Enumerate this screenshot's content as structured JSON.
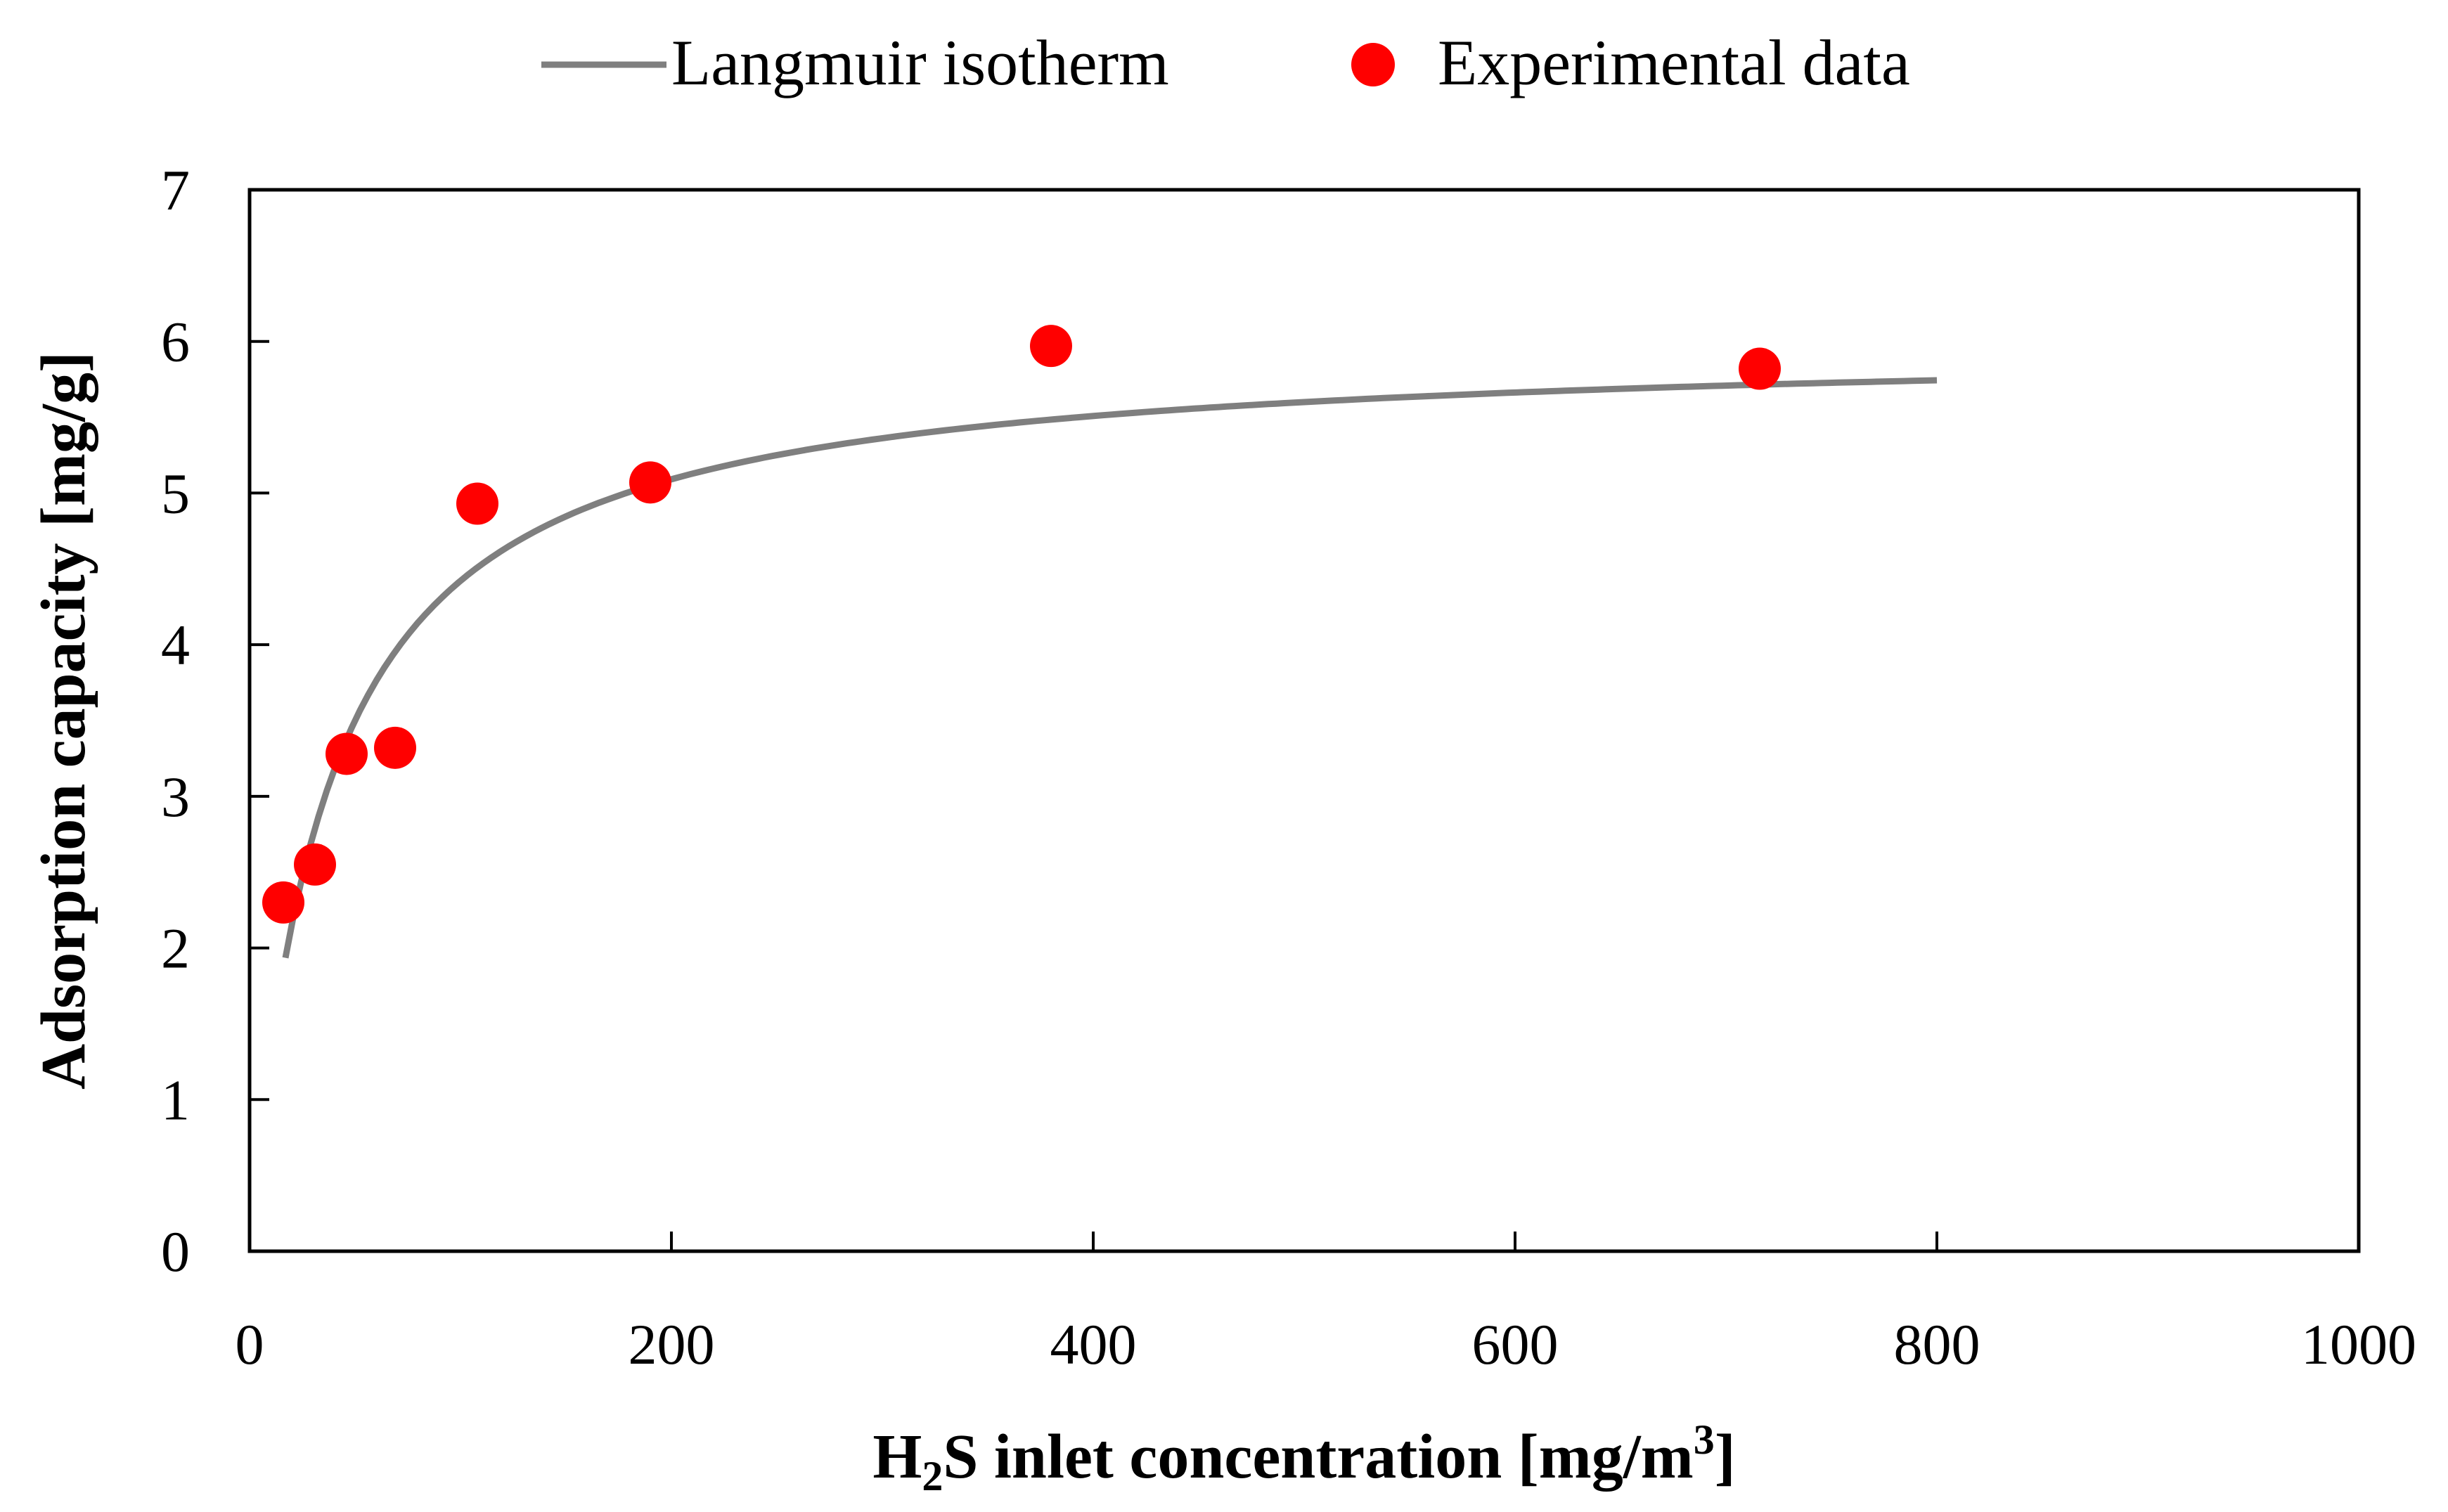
{
  "chart_data": {
    "type": "scatter",
    "title": "",
    "xlabel_main": "H",
    "xlabel_sub": "2",
    "xlabel_rest": "S inlet concentration [mg/m",
    "xlabel_sup": "3",
    "xlabel_end": "]",
    "ylabel": "Adsorption capacity [mg/g]",
    "xlim": [
      0,
      1000
    ],
    "ylim": [
      0,
      7
    ],
    "xticks": [
      0,
      200,
      400,
      600,
      800,
      1000
    ],
    "yticks": [
      0,
      1,
      2,
      3,
      4,
      5,
      6,
      7
    ],
    "grid": false,
    "legend_position": "top-center",
    "series": [
      {
        "name": "Langmuir isotherm",
        "kind": "line",
        "color": "#7f7f7f",
        "model": {
          "qmax": 6.0,
          "K": 0.028
        },
        "x_range": [
          17,
          800
        ]
      },
      {
        "name": "Experimental data",
        "kind": "scatter",
        "color": "#ff0000",
        "x": [
          16,
          31,
          46,
          69,
          108,
          190,
          380,
          716
        ],
        "y": [
          2.3,
          2.55,
          3.28,
          3.32,
          4.93,
          5.07,
          5.97,
          5.82
        ]
      }
    ]
  }
}
